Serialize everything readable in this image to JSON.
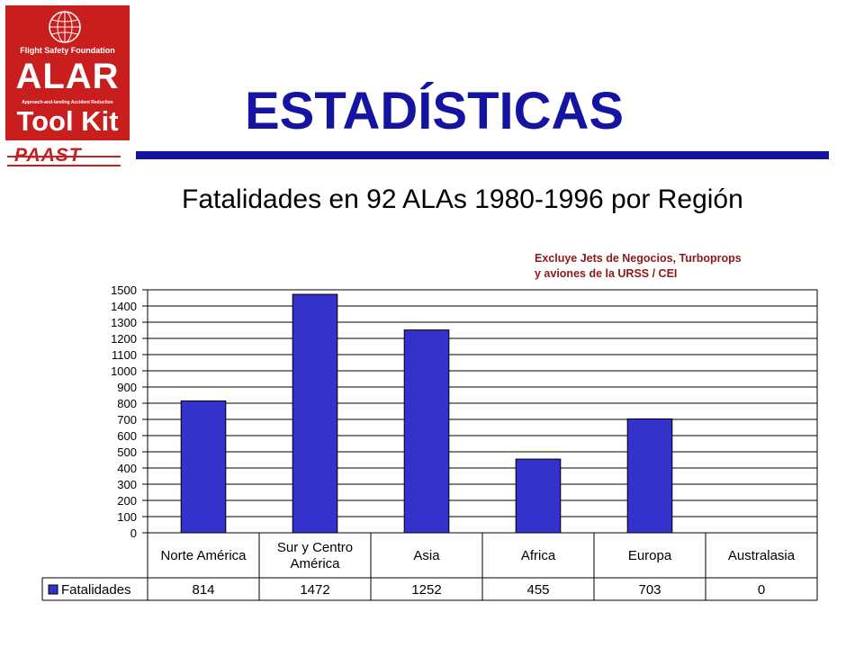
{
  "logo": {
    "organization": "Flight Safety Foundation",
    "wordmark": "ALAR",
    "tagline": "Approach-and-landing Accident Reduction",
    "subtitle": "Tool Kit",
    "program": "PAAST",
    "icon": "globe-icon"
  },
  "slide": {
    "title": "ESTADÍSTICAS"
  },
  "note": {
    "line1": "Excluye Jets de Negocios, Turboprops",
    "line2": "y aviones de la URSS / CEI"
  },
  "colors": {
    "logo_red": "#c81e1e",
    "title_blue": "#1414a0",
    "bar_fill": "#3333cc",
    "note_red": "#8b1a1a"
  },
  "chart_data": {
    "type": "bar",
    "title": "Fatalidades en 92 ALAs 1980-1996 por Región",
    "categories": [
      "Norte América",
      "Sur y Centro América",
      "Asia",
      "Africa",
      "Europa",
      "Australasia"
    ],
    "category_lines": [
      [
        "Norte América"
      ],
      [
        "Sur y Centro",
        "América"
      ],
      [
        "Asia"
      ],
      [
        "Africa"
      ],
      [
        "Europa"
      ],
      [
        "Australasia"
      ]
    ],
    "series": [
      {
        "name": "Fatalidades",
        "values": [
          814,
          1472,
          1252,
          455,
          703,
          0
        ]
      }
    ],
    "value_labels": [
      "814",
      "1472",
      "1252",
      "455",
      "703",
      "0"
    ],
    "ylim": [
      0,
      1500
    ],
    "yticks": [
      0,
      100,
      200,
      300,
      400,
      500,
      600,
      700,
      800,
      900,
      1000,
      1100,
      1200,
      1300,
      1400,
      1500
    ],
    "grid": true,
    "legend": "data-table-left"
  }
}
